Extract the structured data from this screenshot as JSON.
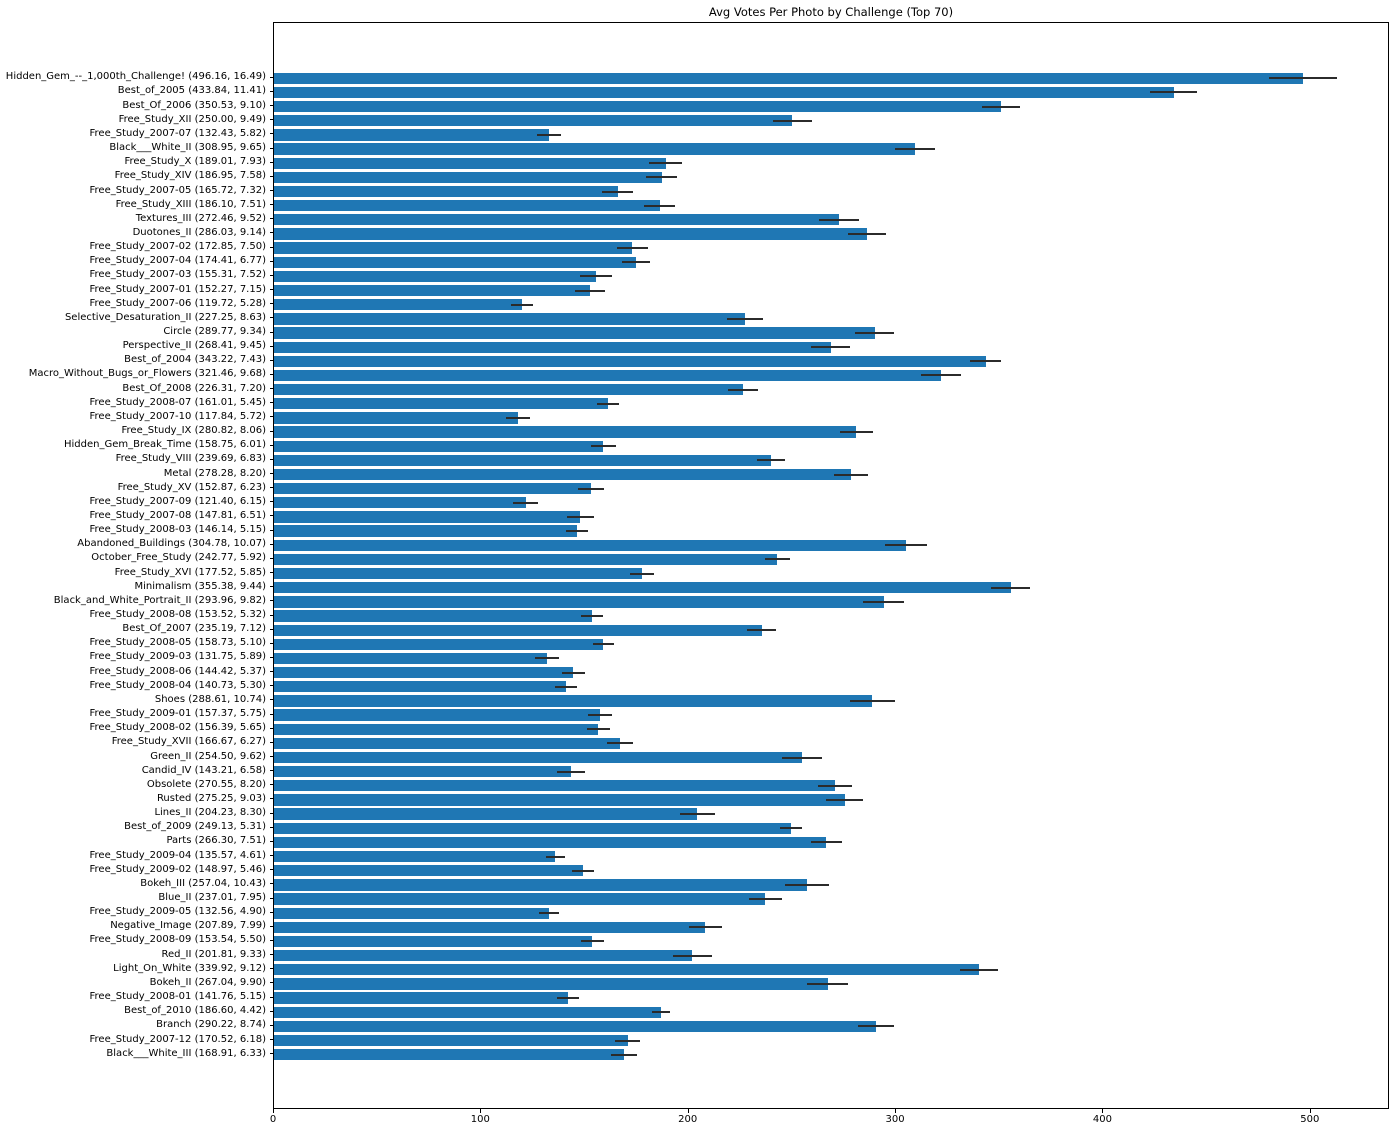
{
  "chart_data": {
    "type": "bar",
    "orientation": "horizontal",
    "title": "Avg Votes Per Photo by Challenge (Top 70)",
    "xlabel": "",
    "ylabel": "",
    "xlim": [
      0,
      538.2
    ],
    "x_ticks": [
      0,
      100,
      200,
      300,
      400,
      500
    ],
    "grid": false,
    "legend": "none",
    "bar_color": "#1f77b4",
    "error_bar_color": "#2b2b2b",
    "ytick_label_format": "{name} ({value}, {error})",
    "series_name": "Avg votes per photo (with error)",
    "series": [
      {
        "name": "Hidden_Gem_--_1,000th_Challenge!",
        "value": 496.16,
        "error": 16.49
      },
      {
        "name": "Best_of_2005",
        "value": 433.84,
        "error": 11.41
      },
      {
        "name": "Best_Of_2006",
        "value": 350.53,
        "error": 9.1
      },
      {
        "name": "Free_Study_XII",
        "value": 250.0,
        "error": 9.49
      },
      {
        "name": "Free_Study_2007-07",
        "value": 132.43,
        "error": 5.82
      },
      {
        "name": "Black___White_II",
        "value": 308.95,
        "error": 9.65
      },
      {
        "name": "Free_Study_X",
        "value": 189.01,
        "error": 7.93
      },
      {
        "name": "Free_Study_XIV",
        "value": 186.95,
        "error": 7.58
      },
      {
        "name": "Free_Study_2007-05",
        "value": 165.72,
        "error": 7.32
      },
      {
        "name": "Free_Study_XIII",
        "value": 186.1,
        "error": 7.51
      },
      {
        "name": "Textures_III",
        "value": 272.46,
        "error": 9.52
      },
      {
        "name": "Duotones_II",
        "value": 286.03,
        "error": 9.14
      },
      {
        "name": "Free_Study_2007-02",
        "value": 172.85,
        "error": 7.5
      },
      {
        "name": "Free_Study_2007-04",
        "value": 174.41,
        "error": 6.77
      },
      {
        "name": "Free_Study_2007-03",
        "value": 155.31,
        "error": 7.52
      },
      {
        "name": "Free_Study_2007-01",
        "value": 152.27,
        "error": 7.15
      },
      {
        "name": "Free_Study_2007-06",
        "value": 119.72,
        "error": 5.28
      },
      {
        "name": "Selective_Desaturation_II",
        "value": 227.25,
        "error": 8.63
      },
      {
        "name": "Circle",
        "value": 289.77,
        "error": 9.34
      },
      {
        "name": "Perspective_II",
        "value": 268.41,
        "error": 9.45
      },
      {
        "name": "Best_of_2004",
        "value": 343.22,
        "error": 7.43
      },
      {
        "name": "Macro_Without_Bugs_or_Flowers",
        "value": 321.46,
        "error": 9.68
      },
      {
        "name": "Best_Of_2008",
        "value": 226.31,
        "error": 7.2
      },
      {
        "name": "Free_Study_2008-07",
        "value": 161.01,
        "error": 5.45
      },
      {
        "name": "Free_Study_2007-10",
        "value": 117.84,
        "error": 5.72
      },
      {
        "name": "Free_Study_IX",
        "value": 280.82,
        "error": 8.06
      },
      {
        "name": "Hidden_Gem_Break_Time",
        "value": 158.75,
        "error": 6.01
      },
      {
        "name": "Free_Study_VIII",
        "value": 239.69,
        "error": 6.83
      },
      {
        "name": "Metal",
        "value": 278.28,
        "error": 8.2
      },
      {
        "name": "Free_Study_XV",
        "value": 152.87,
        "error": 6.23
      },
      {
        "name": "Free_Study_2007-09",
        "value": 121.4,
        "error": 6.15
      },
      {
        "name": "Free_Study_2007-08",
        "value": 147.81,
        "error": 6.51
      },
      {
        "name": "Free_Study_2008-03",
        "value": 146.14,
        "error": 5.15
      },
      {
        "name": "Abandoned_Buildings",
        "value": 304.78,
        "error": 10.07
      },
      {
        "name": "October_Free_Study",
        "value": 242.77,
        "error": 5.92
      },
      {
        "name": "Free_Study_XVI",
        "value": 177.52,
        "error": 5.85
      },
      {
        "name": "Minimalism",
        "value": 355.38,
        "error": 9.44
      },
      {
        "name": "Black_and_White_Portrait_II",
        "value": 293.96,
        "error": 9.82
      },
      {
        "name": "Free_Study_2008-08",
        "value": 153.52,
        "error": 5.32
      },
      {
        "name": "Best_Of_2007",
        "value": 235.19,
        "error": 7.12
      },
      {
        "name": "Free_Study_2008-05",
        "value": 158.73,
        "error": 5.1
      },
      {
        "name": "Free_Study_2009-03",
        "value": 131.75,
        "error": 5.89
      },
      {
        "name": "Free_Study_2008-06",
        "value": 144.42,
        "error": 5.37
      },
      {
        "name": "Free_Study_2008-04",
        "value": 140.73,
        "error": 5.3
      },
      {
        "name": "Shoes",
        "value": 288.61,
        "error": 10.74
      },
      {
        "name": "Free_Study_2009-01",
        "value": 157.37,
        "error": 5.75
      },
      {
        "name": "Free_Study_2008-02",
        "value": 156.39,
        "error": 5.65
      },
      {
        "name": "Free_Study_XVII",
        "value": 166.67,
        "error": 6.27
      },
      {
        "name": "Green_II",
        "value": 254.5,
        "error": 9.62
      },
      {
        "name": "Candid_IV",
        "value": 143.21,
        "error": 6.58
      },
      {
        "name": "Obsolete",
        "value": 270.55,
        "error": 8.2
      },
      {
        "name": "Rusted",
        "value": 275.25,
        "error": 9.03
      },
      {
        "name": "Lines_II",
        "value": 204.23,
        "error": 8.3
      },
      {
        "name": "Best_of_2009",
        "value": 249.13,
        "error": 5.31
      },
      {
        "name": "Parts",
        "value": 266.3,
        "error": 7.51
      },
      {
        "name": "Free_Study_2009-04",
        "value": 135.57,
        "error": 4.61
      },
      {
        "name": "Free_Study_2009-02",
        "value": 148.97,
        "error": 5.46
      },
      {
        "name": "Bokeh_III",
        "value": 257.04,
        "error": 10.43
      },
      {
        "name": "Blue_II",
        "value": 237.01,
        "error": 7.95
      },
      {
        "name": "Free_Study_2009-05",
        "value": 132.56,
        "error": 4.9
      },
      {
        "name": "Negative_Image",
        "value": 207.89,
        "error": 7.99
      },
      {
        "name": "Free_Study_2008-09",
        "value": 153.54,
        "error": 5.5
      },
      {
        "name": "Red_II",
        "value": 201.81,
        "error": 9.33
      },
      {
        "name": "Light_On_White",
        "value": 339.92,
        "error": 9.12
      },
      {
        "name": "Bokeh_II",
        "value": 267.04,
        "error": 9.9
      },
      {
        "name": "Free_Study_2008-01",
        "value": 141.76,
        "error": 5.15
      },
      {
        "name": "Best_of_2010",
        "value": 186.6,
        "error": 4.42
      },
      {
        "name": "Branch",
        "value": 290.22,
        "error": 8.74
      },
      {
        "name": "Free_Study_2007-12",
        "value": 170.52,
        "error": 6.18
      },
      {
        "name": "Black___White_III",
        "value": 168.91,
        "error": 6.33
      }
    ]
  }
}
